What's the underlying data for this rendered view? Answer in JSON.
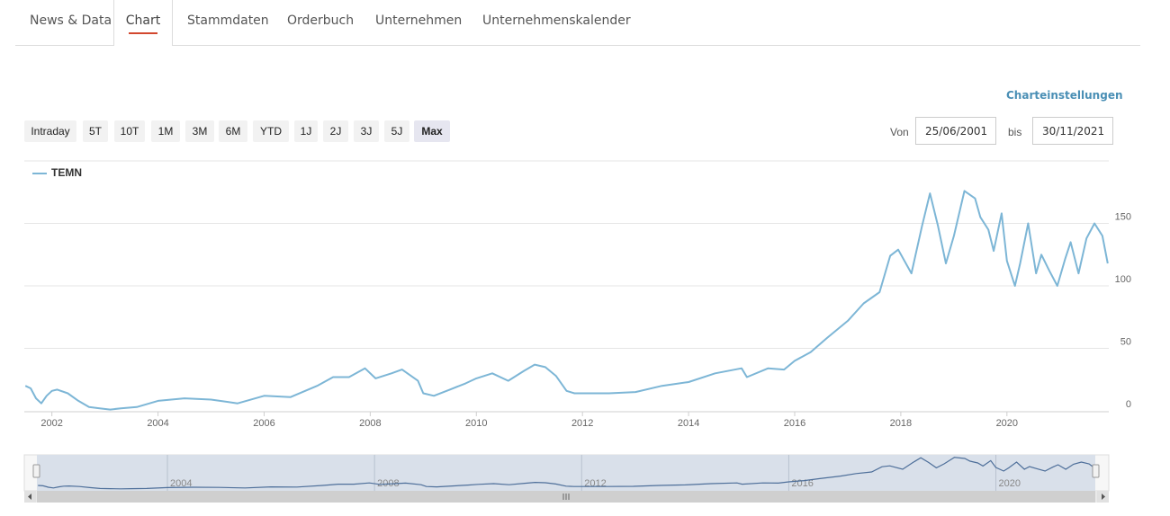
{
  "tabs": [
    {
      "label": "News & Data"
    },
    {
      "label": "Chart"
    },
    {
      "label": "Stammdaten"
    },
    {
      "label": "Orderbuch"
    },
    {
      "label": "Unternehmen"
    },
    {
      "label": "Unternehmenskalender"
    }
  ],
  "active_tab": "Chart",
  "chart_settings_label": "Charteinstellungen",
  "range_buttons": [
    "Intraday",
    "5T",
    "10T",
    "1M",
    "3M",
    "6M",
    "YTD",
    "1J",
    "2J",
    "3J",
    "5J",
    "Max"
  ],
  "selected_range": "Max",
  "date_from_label": "Von",
  "date_from": "25/06/2001",
  "date_to_label": "bis",
  "date_to": "30/11/2021",
  "navigator_labels": [
    "2004",
    "2008",
    "2012",
    "2016",
    "2020"
  ],
  "colors": {
    "series": "#7db6d6",
    "accent": "#d2472e",
    "link": "#4a8fb5"
  },
  "chart_data": {
    "type": "line",
    "title": "",
    "legend": "top-left",
    "grid": true,
    "x_ticks": [
      "2002",
      "2004",
      "2006",
      "2008",
      "2010",
      "2012",
      "2014",
      "2016",
      "2018",
      "2020"
    ],
    "y_ticks": [
      0,
      50,
      100,
      150
    ],
    "xlim": [
      2001.48,
      2021.92
    ],
    "ylim": [
      0,
      200
    ],
    "series": [
      {
        "name": "TEMN",
        "x": [
          2001.5,
          2001.6,
          2001.7,
          2001.8,
          2001.9,
          2002.0,
          2002.1,
          2002.3,
          2002.5,
          2002.7,
          2002.9,
          2003.1,
          2003.3,
          2003.6,
          2004.0,
          2004.5,
          2005.0,
          2005.5,
          2006.0,
          2006.5,
          2007.0,
          2007.3,
          2007.6,
          2007.9,
          2008.1,
          2008.4,
          2008.6,
          2008.9,
          2009.0,
          2009.2,
          2009.5,
          2009.8,
          2010.0,
          2010.3,
          2010.6,
          2010.9,
          2011.1,
          2011.3,
          2011.5,
          2011.7,
          2011.85,
          2012.0,
          2012.5,
          2013.0,
          2013.5,
          2014.0,
          2014.5,
          2015.0,
          2015.1,
          2015.5,
          2015.8,
          2016.0,
          2016.3,
          2016.6,
          2017.0,
          2017.3,
          2017.6,
          2017.8,
          2017.95,
          2018.2,
          2018.4,
          2018.55,
          2018.7,
          2018.85,
          2019.0,
          2019.2,
          2019.4,
          2019.5,
          2019.65,
          2019.75,
          2019.9,
          2020.0,
          2020.15,
          2020.25,
          2020.4,
          2020.55,
          2020.65,
          2020.8,
          2020.95,
          2021.1,
          2021.2,
          2021.35,
          2021.5,
          2021.65,
          2021.8,
          2021.9
        ],
        "values": [
          20,
          18,
          10,
          6,
          12,
          16,
          17,
          14,
          8,
          3,
          2,
          1,
          2,
          3,
          8,
          10,
          9,
          6,
          12,
          11,
          20,
          27,
          27,
          34,
          26,
          30,
          33,
          24,
          14,
          12,
          17,
          22,
          26,
          30,
          24,
          32,
          37,
          35,
          28,
          16,
          14,
          14,
          14,
          15,
          20,
          23,
          30,
          34,
          27,
          34,
          33,
          40,
          47,
          58,
          72,
          86,
          95,
          124,
          129,
          110,
          148,
          174,
          148,
          118,
          140,
          176,
          170,
          155,
          145,
          128,
          158,
          120,
          100,
          118,
          150,
          110,
          125,
          112,
          100,
          122,
          135,
          110,
          138,
          150,
          140,
          118
        ]
      }
    ]
  }
}
